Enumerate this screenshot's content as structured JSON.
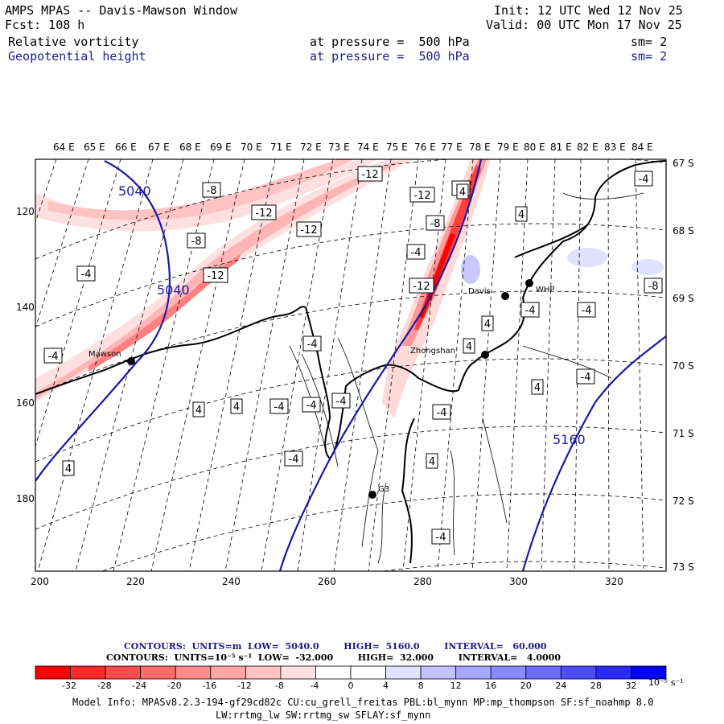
{
  "header": {
    "title": "AMPS MPAS -- Davis-Mawson Window",
    "forecast": "Fcst: 108 h",
    "init": "Init: 12 UTC Wed 12 Nov 25",
    "valid": "Valid: 00 UTC Mon 17 Nov 25",
    "field1_name": "Relative vorticity",
    "field1_level": "at pressure =  500 hPa",
    "field1_sm": "sm= 2",
    "field2_name": "Geopotential height",
    "field2_level": "at pressure =  500 hPa",
    "field2_sm": "sm= 2"
  },
  "longitude_labels": [
    "64 E",
    "65 E",
    "66 E",
    "67 E",
    "68 E",
    "69 E",
    "70 E",
    "71 E",
    "72 E",
    "73 E",
    "74 E",
    "75 E",
    "76 E",
    "77 E",
    "78 E",
    "79 E",
    "80 E",
    "81 E",
    "82 E",
    "83 E",
    "84 E"
  ],
  "latitude_labels": [
    "67 S",
    "68 S",
    "69 S",
    "70 S",
    "71 S",
    "72 S",
    "73 S"
  ],
  "grid_x_labels": [
    "200",
    "220",
    "240",
    "260",
    "280",
    "300",
    "320"
  ],
  "grid_y_labels": [
    "120",
    "140",
    "160",
    "180"
  ],
  "stations": [
    {
      "name": "Mawson"
    },
    {
      "name": "Davis"
    },
    {
      "name": "WHP"
    },
    {
      "name": "Zhongshan"
    },
    {
      "name": "G3"
    }
  ],
  "height_contour_labels": [
    "5040",
    "5040",
    "5160"
  ],
  "vorticity_labels": [
    "-12",
    "-8",
    "-12",
    "-8",
    "-12",
    "-12",
    "-4",
    "-12",
    "-4",
    "-8",
    "-4",
    "-12",
    "-4",
    "4",
    "-4",
    "4",
    "-4",
    "-4",
    "4",
    "-4",
    "-4",
    "4",
    "4",
    "-4",
    "-4",
    "-4",
    "-4",
    "4",
    "4",
    "4",
    "-4",
    "-4",
    "4",
    "-8"
  ],
  "contour_info_1": "CONTOURS:  UNITS=m  LOW=  5040.0        HIGH=  5160.0        INTERVAL=   60.000",
  "contour_info_2": "CONTOURS:  UNITS=10⁻⁵ s⁻¹  LOW=  -32.000        HIGH=  32.000        INTERVAL=   4.0000",
  "colorbar_labels": [
    "-32",
    "-28",
    "-24",
    "-20",
    "-16",
    "-12",
    "-8",
    "-4",
    "0",
    "4",
    "8",
    "12",
    "16",
    "20",
    "24",
    "28",
    "32"
  ],
  "colorbar_units": "10⁻⁵ s⁻¹",
  "colorbar_colors": [
    "#ff0000",
    "#ff2a2a",
    "#ff4d4d",
    "#ff6b6b",
    "#ff8a8a",
    "#ffa7a7",
    "#ffc3c3",
    "#ffe0e0",
    "#ffffff",
    "#ffffff",
    "#e0e0ff",
    "#c3c3ff",
    "#a7a7ff",
    "#8a8aff",
    "#6b6bff",
    "#4d4dff",
    "#2a2aff",
    "#0000ff"
  ],
  "model_info_1": "Model Info: MPASv8.2.3-194-gf29cd82c CU:cu_grell_freitas PBL:bl_mynn MP:mp_thompson SF:sf_noahmp 8.0",
  "model_info_2": "LW:rrtmg_lw SW:rrtmg_sw SFLAY:sf_mynn",
  "colors": {
    "height_contour": "#1a1aa0",
    "negative_vorticity": "#ff0000",
    "positive_vorticity": "#0000ff"
  }
}
